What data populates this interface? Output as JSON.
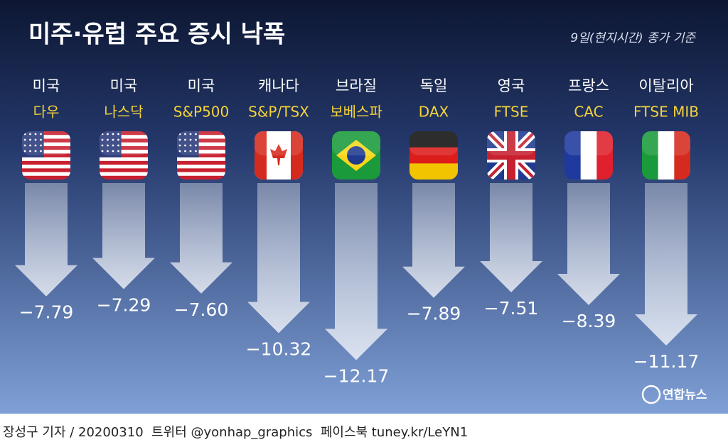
{
  "chart_data": {
    "type": "arrow",
    "title": "미주·유럽 주요 증시 낙폭",
    "subtitle": "9일(현지시간) 종가 기준",
    "categories": [
      "미국",
      "미국",
      "미국",
      "캐나다",
      "브라질",
      "독일",
      "영국",
      "프랑스",
      "이탈리아"
    ],
    "index_names": [
      "다우",
      "나스닥",
      "S&P500",
      "S&P/TSX",
      "보베스파",
      "DAX",
      "FTSE",
      "CAC",
      "FTSE MIB"
    ],
    "values": [
      -7.79,
      -7.29,
      -7.6,
      -10.32,
      -12.17,
      -7.89,
      -7.51,
      -8.39,
      -11.17
    ],
    "value_labels": [
      "−7.79",
      "−7.29",
      "−7.60",
      "−10.32",
      "−12.17",
      "−7.89",
      "−7.51",
      "−8.39",
      "−11.17"
    ],
    "color": "#dfe8f8",
    "logo": "연합뉴스",
    "credit": "장성구 기자 / 20200310  트위터 @yonhap_graphics  페이스북 tuney.kr/LeYN1"
  }
}
